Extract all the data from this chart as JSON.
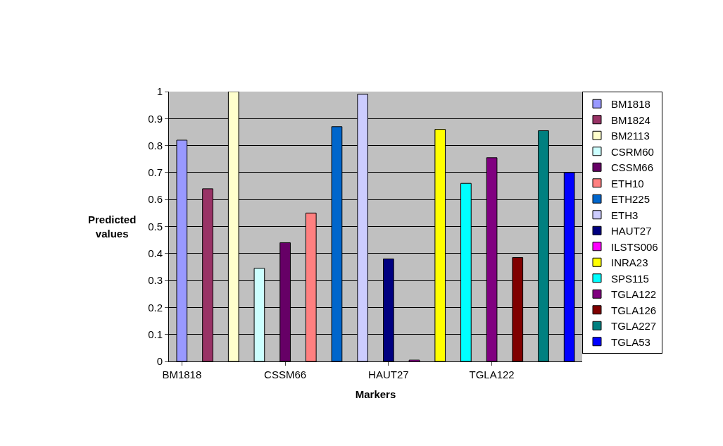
{
  "chart_data": {
    "type": "bar",
    "xlabel": "Markers",
    "ylabel": "Predicted values",
    "categories": [
      "BM1818",
      null,
      null,
      null,
      "CSSM66",
      null,
      null,
      null,
      "HAUT27",
      null,
      null,
      null,
      "TGLA122",
      null,
      null,
      null
    ],
    "series": [
      {
        "name": "BM1818",
        "color": "#9999ff",
        "values": [
          0.82,
          null,
          null,
          null,
          null,
          null,
          null,
          null,
          null,
          null,
          null,
          null,
          null,
          null,
          null,
          null
        ]
      },
      {
        "name": "BM1824",
        "color": "#993366",
        "values": [
          null,
          0.64,
          null,
          null,
          null,
          null,
          null,
          null,
          null,
          null,
          null,
          null,
          null,
          null,
          null,
          null
        ]
      },
      {
        "name": "BM2113",
        "color": "#ffffcc",
        "values": [
          null,
          null,
          1.0,
          null,
          null,
          null,
          null,
          null,
          null,
          null,
          null,
          null,
          null,
          null,
          null,
          null
        ]
      },
      {
        "name": "CSRM60",
        "color": "#ccffff",
        "values": [
          null,
          null,
          null,
          0.345,
          null,
          null,
          null,
          null,
          null,
          null,
          null,
          null,
          null,
          null,
          null,
          null
        ]
      },
      {
        "name": "CSSM66",
        "color": "#660066",
        "values": [
          null,
          null,
          null,
          null,
          0.44,
          null,
          null,
          null,
          null,
          null,
          null,
          null,
          null,
          null,
          null,
          null
        ]
      },
      {
        "name": "ETH10",
        "color": "#ff8080",
        "values": [
          null,
          null,
          null,
          null,
          null,
          0.55,
          null,
          null,
          null,
          null,
          null,
          null,
          null,
          null,
          null,
          null
        ]
      },
      {
        "name": "ETH225",
        "color": "#0066cc",
        "values": [
          null,
          null,
          null,
          null,
          null,
          null,
          0.87,
          null,
          null,
          null,
          null,
          null,
          null,
          null,
          null,
          null
        ]
      },
      {
        "name": "ETH3",
        "color": "#ccccff",
        "values": [
          null,
          null,
          null,
          null,
          null,
          null,
          null,
          0.99,
          null,
          null,
          null,
          null,
          null,
          null,
          null,
          null
        ]
      },
      {
        "name": "HAUT27",
        "color": "#000080",
        "values": [
          null,
          null,
          null,
          null,
          null,
          null,
          null,
          null,
          0.38,
          null,
          null,
          null,
          null,
          null,
          null,
          null
        ]
      },
      {
        "name": "ILSTS006",
        "color": "#ff00ff",
        "values": [
          null,
          null,
          null,
          null,
          null,
          null,
          null,
          null,
          null,
          0.005,
          null,
          null,
          null,
          null,
          null,
          null
        ]
      },
      {
        "name": "INRA23",
        "color": "#ffff00",
        "values": [
          null,
          null,
          null,
          null,
          null,
          null,
          null,
          null,
          null,
          null,
          0.86,
          null,
          null,
          null,
          null,
          null
        ]
      },
      {
        "name": "SPS115",
        "color": "#00ffff",
        "values": [
          null,
          null,
          null,
          null,
          null,
          null,
          null,
          null,
          null,
          null,
          null,
          0.66,
          null,
          null,
          null,
          null
        ]
      },
      {
        "name": "TGLA122",
        "color": "#800080",
        "values": [
          null,
          null,
          null,
          null,
          null,
          null,
          null,
          null,
          null,
          null,
          null,
          null,
          0.755,
          null,
          null,
          null
        ]
      },
      {
        "name": "TGLA126",
        "color": "#800000",
        "values": [
          null,
          null,
          null,
          null,
          null,
          null,
          null,
          null,
          null,
          null,
          null,
          null,
          null,
          0.385,
          null,
          null
        ]
      },
      {
        "name": "TGLA227",
        "color": "#008080",
        "values": [
          null,
          null,
          null,
          null,
          null,
          null,
          null,
          null,
          null,
          null,
          null,
          null,
          null,
          null,
          0.855,
          null
        ]
      },
      {
        "name": "TGLA53",
        "color": "#0000ff",
        "values": [
          null,
          null,
          null,
          null,
          null,
          null,
          null,
          null,
          null,
          null,
          null,
          null,
          null,
          null,
          null,
          0.7
        ]
      }
    ],
    "ylim": [
      0,
      1
    ],
    "yticks": [
      0,
      0.1,
      0.2,
      0.3,
      0.4,
      0.5,
      0.6,
      0.7,
      0.8,
      0.9,
      1
    ],
    "grid": "y",
    "legend": "right"
  }
}
